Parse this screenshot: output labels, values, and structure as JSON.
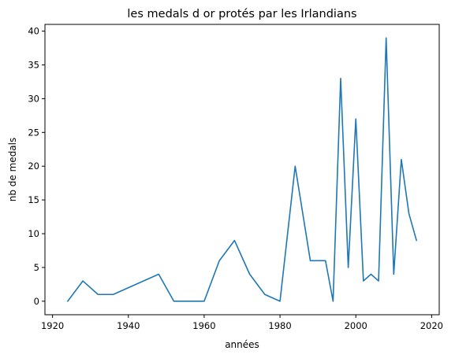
{
  "chart_data": {
    "type": "line",
    "title": "les medals d or protés par les Irlandians",
    "xlabel": "années",
    "ylabel": "nb de medals",
    "xlim": [
      1918,
      2022
    ],
    "ylim": [
      -2,
      41
    ],
    "xticks": [
      1920,
      1940,
      1960,
      1980,
      2000,
      2020
    ],
    "yticks": [
      0,
      5,
      10,
      15,
      20,
      25,
      30,
      35,
      40
    ],
    "grid": false,
    "line_color": "#1f77b4",
    "series": [
      {
        "x": [
          1924,
          1928,
          1932,
          1936,
          1948,
          1952,
          1956,
          1960,
          1964,
          1968,
          1972,
          1976,
          1980,
          1984,
          1988,
          1992,
          1994,
          1996,
          1998,
          2000,
          2002,
          2004,
          2006,
          2008,
          2010,
          2012,
          2014,
          2016
        ],
        "y": [
          0,
          3,
          1,
          1,
          4,
          0,
          0,
          0,
          6,
          9,
          4,
          1,
          0,
          20,
          6,
          6,
          0,
          33,
          5,
          27,
          3,
          4,
          3,
          39,
          4,
          21,
          13,
          9
        ]
      }
    ]
  }
}
